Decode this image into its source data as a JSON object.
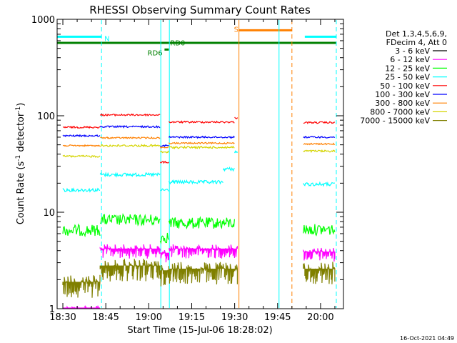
{
  "chart_data": {
    "type": "line",
    "title": "RHESSI Observing Summary Count Rates",
    "xlabel": "Start Time (15-Jul-06 18:28:02)",
    "ylabel_main": "Count Rate (s",
    "ylabel_sup1": "-1",
    "ylabel_mid": " detector",
    "ylabel_sup2": "-1",
    "ylabel_end": ")",
    "y_scale": "log",
    "ylim": [
      1,
      1000
    ],
    "xlim_minutes": [
      -2,
      98
    ],
    "x_ticks": [
      {
        "label": "18:30",
        "minute": 0
      },
      {
        "label": "18:45",
        "minute": 15
      },
      {
        "label": "19:00",
        "minute": 30
      },
      {
        "label": "19:15",
        "minute": 45
      },
      {
        "label": "19:30",
        "minute": 60
      },
      {
        "label": "19:45",
        "minute": 75
      },
      {
        "label": "20:00",
        "minute": 90
      }
    ],
    "y_ticks": [
      {
        "label": "1",
        "value": 1
      },
      {
        "label": "10",
        "value": 10
      },
      {
        "label": "100",
        "value": 100
      },
      {
        "label": "1000",
        "value": 1000
      }
    ],
    "legend_header": [
      "Det 1,3,4,5,6,9,",
      "FDecim 4, Att 0"
    ],
    "legend_position": "right",
    "series": [
      {
        "name": "3 - 6 keV",
        "color": "#000000",
        "segments": [],
        "noise": 0
      },
      {
        "name": "6 - 12 keV",
        "color": "#ff00ff",
        "noise": 0.5,
        "segments": [
          [
            0,
            13,
            1
          ],
          [
            13,
            34,
            4.2
          ],
          [
            34,
            37,
            3.8
          ],
          [
            37,
            61,
            4.2
          ],
          [
            84,
            95,
            3.9
          ]
        ]
      },
      {
        "name": "12 - 25 keV",
        "color": "#00ff00",
        "noise": 0.4,
        "segments": [
          [
            0,
            13,
            6.5
          ],
          [
            13,
            34,
            8.3
          ],
          [
            34,
            37,
            5.5
          ],
          [
            37,
            60,
            7.7
          ],
          [
            84,
            95,
            6.6
          ]
        ]
      },
      {
        "name": "25 - 50 keV",
        "color": "#00ffff",
        "noise": 0.12,
        "segments": [
          [
            0,
            13,
            17
          ],
          [
            13,
            34,
            24.5
          ],
          [
            34,
            37,
            17
          ],
          [
            37,
            56,
            20.5
          ],
          [
            56,
            60,
            28
          ],
          [
            60,
            61,
            42
          ],
          [
            84,
            95,
            19.5
          ]
        ]
      },
      {
        "name": "50 - 100 keV",
        "color": "#ff0000",
        "noise": 0.06,
        "segments": [
          [
            0,
            13,
            76
          ],
          [
            13,
            34,
            102
          ],
          [
            34,
            37,
            33
          ],
          [
            37,
            60,
            86
          ],
          [
            60,
            61,
            95
          ],
          [
            84,
            95,
            85
          ]
        ]
      },
      {
        "name": "100 - 300 keV",
        "color": "#0000ff",
        "noise": 0.06,
        "segments": [
          [
            0,
            13,
            62
          ],
          [
            13,
            34,
            77
          ],
          [
            34,
            37,
            49
          ],
          [
            37,
            60,
            60
          ],
          [
            84,
            95,
            60
          ]
        ]
      },
      {
        "name": "300 - 800 keV",
        "color": "#ff8000",
        "noise": 0.05,
        "segments": [
          [
            0,
            13,
            49
          ],
          [
            13,
            34,
            59
          ],
          [
            34,
            37,
            47
          ],
          [
            37,
            60,
            52
          ],
          [
            84,
            95,
            51
          ]
        ]
      },
      {
        "name": "800 - 7000 keV",
        "color": "#d4d400",
        "noise": 0.07,
        "segments": [
          [
            0,
            13,
            38
          ],
          [
            13,
            34,
            49
          ],
          [
            34,
            37,
            42
          ],
          [
            37,
            60,
            47
          ],
          [
            84,
            95,
            43
          ]
        ]
      },
      {
        "name": "7000 - 15000 keV",
        "color": "#808000",
        "noise": 0.8,
        "segments": [
          [
            0,
            13,
            1.9
          ],
          [
            13,
            34,
            2.8
          ],
          [
            34,
            37,
            2.5
          ],
          [
            37,
            61,
            2.6
          ],
          [
            84,
            95,
            2.6
          ]
        ]
      }
    ],
    "flag_bars": [
      {
        "label": "N",
        "color": "#00ffff",
        "segments": [
          [
            -2,
            13.5
          ],
          [
            84.5,
            95.5
          ]
        ],
        "level": 660
      },
      {
        "label": "S",
        "color": "#ff8000",
        "segments": [
          [
            61.5,
            80
          ]
        ],
        "level": 770
      },
      {
        "label": "",
        "color": "#008000",
        "segments": [
          [
            -2,
            95.5
          ]
        ],
        "level": 570
      },
      {
        "label": "RD0",
        "color": "#008000",
        "segments": [
          [
            34.5,
            37
          ]
        ],
        "level": 520
      },
      {
        "label": "RD6",
        "color": "#008000",
        "segments": [
          [
            34.5,
            37
          ]
        ],
        "level": 520
      }
    ],
    "vertical_markers": [
      {
        "minute": 13.5,
        "color": "#00ffff",
        "style": "dashed"
      },
      {
        "minute": 34.2,
        "color": "#00ffff",
        "style": "solid"
      },
      {
        "minute": 37.2,
        "color": "#00ffff",
        "style": "solid"
      },
      {
        "minute": 61.5,
        "color": "#ff8000",
        "style": "solid"
      },
      {
        "minute": 75.5,
        "color": "#00ffff",
        "style": "solid"
      },
      {
        "minute": 80,
        "color": "#ff8000",
        "style": "dashed"
      },
      {
        "minute": 95.5,
        "color": "#00ffff",
        "style": "dashed"
      }
    ],
    "timestamp": "16-Oct-2021 04:49"
  }
}
